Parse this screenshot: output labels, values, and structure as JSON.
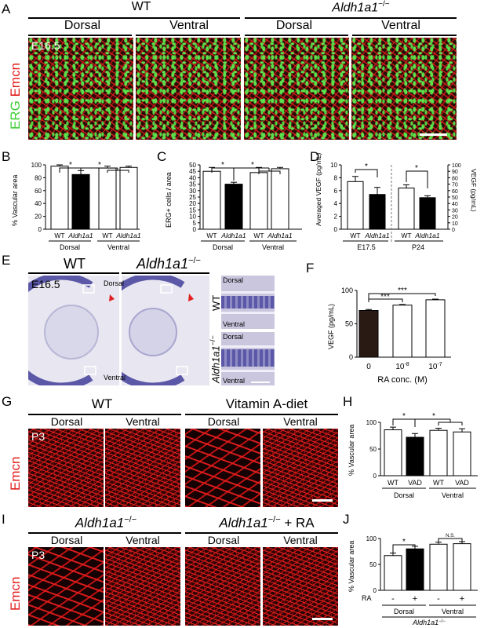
{
  "panelA": {
    "letter": "A",
    "wt": "WT",
    "mutant": "Aldh1a1",
    "mutant_sup": "−/−",
    "dorsal": "Dorsal",
    "ventral": "Ventral",
    "stage": "E16.5",
    "stain_green": "ERG",
    "stain_red": "Emcn"
  },
  "panelB": {
    "letter": "B",
    "chart_data": {
      "type": "bar",
      "ylabel": "% Vascular area",
      "ylim": [
        0,
        100
      ],
      "yticks": [
        0,
        20,
        40,
        60,
        80,
        100
      ],
      "categories": [
        "WT",
        "Aldh1a1",
        "WT",
        "Aldh1a1"
      ],
      "groups": [
        "Dorsal",
        "Ventral"
      ],
      "values": [
        98,
        85,
        95,
        96
      ],
      "errors": [
        2,
        6,
        3,
        2
      ],
      "fills": [
        "#ffffff",
        "#000000",
        "#ffffff",
        "#ffffff"
      ],
      "annotations": [
        "*",
        "*"
      ]
    }
  },
  "panelC": {
    "letter": "C",
    "chart_data": {
      "type": "bar",
      "ylabel": "ERG+ cells / area",
      "ylim": [
        0,
        50
      ],
      "yticks": [
        0,
        5,
        10,
        15,
        20,
        25,
        30,
        35,
        40,
        45,
        50
      ],
      "categories": [
        "WT",
        "Aldh1a1",
        "WT",
        "Aldh1a1"
      ],
      "groups": [
        "Dorsal",
        "Ventral"
      ],
      "values": [
        45,
        35,
        44,
        47
      ],
      "errors": [
        3,
        1.5,
        4,
        1
      ],
      "fills": [
        "#ffffff",
        "#000000",
        "#ffffff",
        "#ffffff"
      ],
      "annotations": [
        "*",
        "*"
      ]
    }
  },
  "panelD": {
    "letter": "D",
    "chart_data": {
      "type": "bar",
      "ylabel_left": "Averaged VEGF (pg/mL)",
      "ylabel_right": "VEGF (pg/mL)",
      "ylim_left": [
        0,
        10
      ],
      "yticks_left": [
        0,
        2,
        4,
        6,
        8,
        10
      ],
      "ylim_right": [
        0,
        100
      ],
      "yticks_right": [
        0,
        10,
        20,
        30,
        40,
        50,
        60,
        70,
        80,
        90,
        100
      ],
      "categories": [
        "WT",
        "Aldh1a1",
        "WT",
        "Aldh1a1"
      ],
      "groups": [
        "E17.5",
        "P24"
      ],
      "values": [
        7.4,
        5.4,
        64,
        49
      ],
      "errors": [
        0.8,
        1.1,
        5,
        3
      ],
      "fills": [
        "#ffffff",
        "#000000",
        "#ffffff",
        "#000000"
      ],
      "annotations": [
        "*",
        "*"
      ]
    }
  },
  "panelE": {
    "letter": "E",
    "wt": "WT",
    "mutant": "Aldh1a1",
    "mutant_sup": "−/−",
    "stage": "E16.5",
    "dorsal": "Dorsal",
    "ventral": "Ventral",
    "inset_wt": "WT",
    "inset_mut": "Aldh1a1",
    "inset_mut_sup": "−/−"
  },
  "panelF": {
    "letter": "F",
    "chart_data": {
      "type": "bar",
      "ylabel": "VEGF (pg/mL)",
      "xlabel": "RA conc. (M)",
      "ylim": [
        0,
        100
      ],
      "yticks": [
        0,
        50,
        100
      ],
      "categories": [
        "0",
        "10-8",
        "10-7"
      ],
      "tick_labels": [
        {
          "base": "0",
          "sup": ""
        },
        {
          "base": "10",
          "sup": "-8"
        },
        {
          "base": "10",
          "sup": "-7"
        }
      ],
      "values": [
        70,
        78,
        86
      ],
      "errors": [
        1.5,
        1,
        1
      ],
      "fills": [
        "#2a1a14",
        "#ffffff",
        "#ffffff"
      ],
      "annotations": [
        "***",
        "***"
      ]
    }
  },
  "panelG": {
    "letter": "G",
    "wt": "WT",
    "diet": "Vitamin A-diet",
    "dorsal": "Dorsal",
    "ventral": "Ventral",
    "stage": "P3",
    "stain": "Emcn"
  },
  "panelH": {
    "letter": "H",
    "chart_data": {
      "type": "bar",
      "ylabel": "% Vascular area",
      "ylim": [
        0,
        100
      ],
      "yticks": [
        0,
        50,
        100
      ],
      "categories": [
        "WT",
        "VAD",
        "WT",
        "VAD"
      ],
      "groups": [
        "Dorsal",
        "Ventral"
      ],
      "values": [
        86,
        72,
        85,
        82
      ],
      "errors": [
        5,
        7,
        4,
        6
      ],
      "fills": [
        "#ffffff",
        "#000000",
        "#ffffff",
        "#ffffff"
      ],
      "annotations": [
        "*",
        "*"
      ]
    }
  },
  "panelI": {
    "letter": "I",
    "mutant": "Aldh1a1",
    "mutant_sup": "−/−",
    "mutant_ra_suffix": " + RA",
    "dorsal": "Dorsal",
    "ventral": "Ventral",
    "stage": "P3",
    "stain": "Emcn"
  },
  "panelJ": {
    "letter": "J",
    "chart_data": {
      "type": "bar",
      "ylabel": "% Vascular area",
      "ylim": [
        0,
        100
      ],
      "yticks": [
        0,
        50,
        100
      ],
      "row_label": "RA",
      "categories": [
        "-",
        "+",
        "-",
        "+"
      ],
      "groups": [
        "Dorsal",
        "Ventral"
      ],
      "values": [
        67,
        80,
        89,
        90
      ],
      "errors": [
        5,
        5,
        4,
        4
      ],
      "fills": [
        "#ffffff",
        "#000000",
        "#ffffff",
        "#ffffff"
      ],
      "annotations": [
        "*",
        "N.S."
      ],
      "footer": "Aldh1a1",
      "footer_sup": "−/−"
    }
  }
}
